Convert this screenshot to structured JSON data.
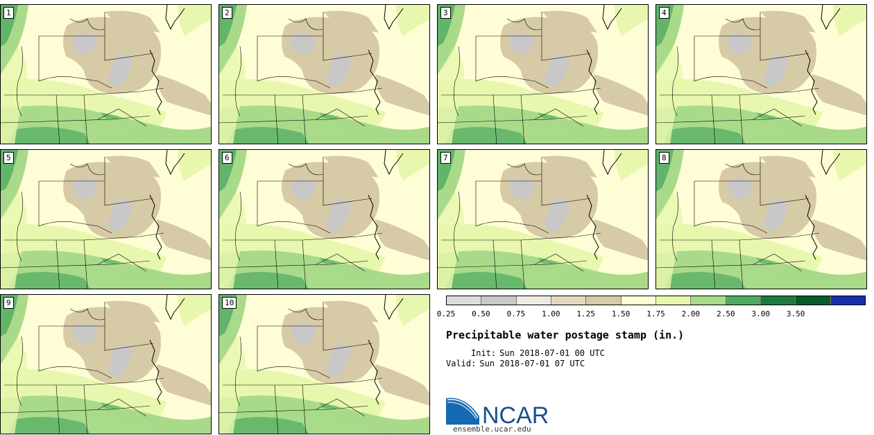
{
  "stamps": [
    {
      "label": "1"
    },
    {
      "label": "2"
    },
    {
      "label": "3"
    },
    {
      "label": "4"
    },
    {
      "label": "5"
    },
    {
      "label": "6"
    },
    {
      "label": "7"
    },
    {
      "label": "8"
    },
    {
      "label": "9"
    },
    {
      "label": "10"
    }
  ],
  "colorbar": {
    "colors": [
      "#dcdcdc",
      "#c8c8c8",
      "#ecebe2",
      "#e3d8bd",
      "#d7caa6",
      "#fefdd6",
      "#e7f7ad",
      "#a9da8a",
      "#4faa62",
      "#1f7a3e",
      "#0b5a2a",
      "#1a2fa7"
    ],
    "ticks": [
      "0.25",
      "0.50",
      "0.75",
      "1.00",
      "1.25",
      "1.50",
      "1.75",
      "2.00",
      "2.50",
      "3.00",
      "3.50"
    ]
  },
  "title": "Precipitable water postage stamp (in.)",
  "init": {
    "label": "Init:",
    "value": "Sun 2018-07-01 00 UTC"
  },
  "valid": {
    "label": "Valid:",
    "value": "Sun 2018-07-01 07 UTC"
  },
  "logo": {
    "text": "NCAR",
    "url": "ensemble.ucar.edu"
  },
  "map_colors": {
    "bg": "#fefdd6",
    "tan": "#d7caa6",
    "grey": "#c8c8c8",
    "light_green": "#e7f7ad",
    "mid_green": "#a9da8a",
    "dark_green": "#4faa62"
  }
}
